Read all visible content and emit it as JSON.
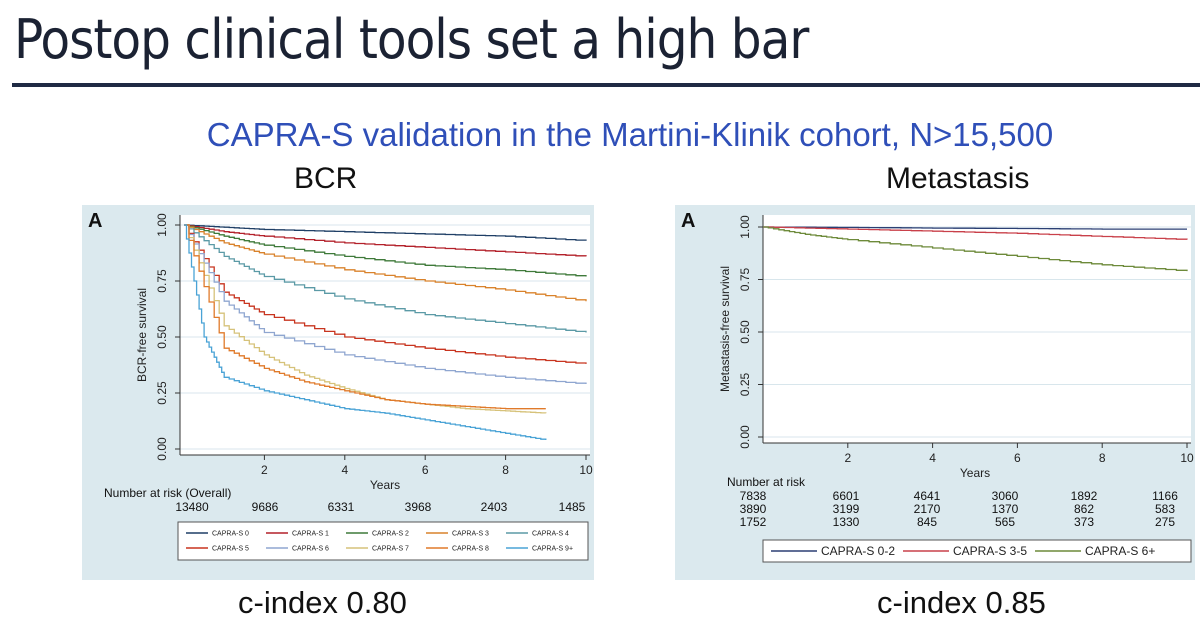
{
  "slide": {
    "title": "Postop clinical tools set a high bar",
    "subtitle": "CAPRA-S validation in the Martini-Klinik cohort, N>15,500",
    "left_heading": "BCR",
    "right_heading": "Metastasis",
    "left_cindex": "c-index 0.80",
    "right_cindex": "c-index 0.85"
  },
  "chart_data": [
    {
      "type": "line",
      "panel_label": "A",
      "ylabel": "BCR-free survival",
      "xlabel": "Years",
      "xlim": [
        0,
        10
      ],
      "ylim": [
        0,
        1
      ],
      "xticks": [
        "2",
        "4",
        "6",
        "8",
        "10"
      ],
      "yticks": [
        "0.00",
        "0.25",
        "0.50",
        "0.75",
        "1.00"
      ],
      "risk_label": "Number at risk (Overall)",
      "risk_table": [
        [
          "13480",
          "9686",
          "6331",
          "3968",
          "2403",
          "1485"
        ]
      ],
      "series": [
        {
          "name": "CAPRA-S 0",
          "color": "#1f3f66",
          "x": [
            0,
            1,
            2,
            4,
            6,
            8,
            10
          ],
          "y": [
            1,
            0.99,
            0.98,
            0.97,
            0.96,
            0.95,
            0.93
          ]
        },
        {
          "name": "CAPRA-S 1",
          "color": "#b3202a",
          "x": [
            0,
            1,
            2,
            4,
            6,
            8,
            10
          ],
          "y": [
            1,
            0.97,
            0.95,
            0.92,
            0.9,
            0.88,
            0.86
          ]
        },
        {
          "name": "CAPRA-S 2",
          "color": "#3f7a3a",
          "x": [
            0,
            1,
            2,
            4,
            6,
            8,
            10
          ],
          "y": [
            1,
            0.95,
            0.91,
            0.86,
            0.82,
            0.8,
            0.77
          ]
        },
        {
          "name": "CAPRA-S 3",
          "color": "#d9822b",
          "x": [
            0,
            1,
            2,
            4,
            6,
            8,
            10
          ],
          "y": [
            1,
            0.92,
            0.87,
            0.8,
            0.75,
            0.71,
            0.66
          ]
        },
        {
          "name": "CAPRA-S 4",
          "color": "#5b9aa6",
          "x": [
            0,
            1,
            2,
            4,
            6,
            8,
            10
          ],
          "y": [
            1,
            0.86,
            0.77,
            0.67,
            0.6,
            0.56,
            0.52
          ]
        },
        {
          "name": "CAPRA-S 5",
          "color": "#c8341f",
          "x": [
            0,
            1,
            2,
            4,
            6,
            8,
            10
          ],
          "y": [
            1,
            0.7,
            0.6,
            0.5,
            0.45,
            0.41,
            0.38
          ]
        },
        {
          "name": "CAPRA-S 6",
          "color": "#8fa6d0",
          "x": [
            0,
            1,
            2,
            4,
            6,
            8,
            10
          ],
          "y": [
            1,
            0.66,
            0.52,
            0.42,
            0.36,
            0.32,
            0.29
          ]
        },
        {
          "name": "CAPRA-S 7",
          "color": "#d6c27a",
          "x": [
            0,
            1,
            2,
            3,
            4,
            5,
            6,
            7,
            8,
            9
          ],
          "y": [
            1,
            0.55,
            0.42,
            0.33,
            0.27,
            0.22,
            0.2,
            0.18,
            0.17,
            0.16
          ]
        },
        {
          "name": "CAPRA-S 8",
          "color": "#e07a2a",
          "x": [
            0,
            1,
            2,
            3,
            4,
            5,
            6,
            7,
            8,
            9
          ],
          "y": [
            1,
            0.45,
            0.36,
            0.3,
            0.26,
            0.22,
            0.2,
            0.19,
            0.18,
            0.18
          ]
        },
        {
          "name": "CAPRA-S 9+",
          "color": "#4aa3d6",
          "x": [
            0,
            0.5,
            1,
            2,
            3,
            4,
            5,
            6,
            7,
            8,
            9
          ],
          "y": [
            1,
            0.5,
            0.32,
            0.26,
            0.22,
            0.18,
            0.16,
            0.13,
            0.1,
            0.07,
            0.04
          ]
        }
      ]
    },
    {
      "type": "line",
      "panel_label": "A",
      "ylabel": "Metastasis-free survival",
      "xlabel": "Years",
      "xlim": [
        0,
        10
      ],
      "ylim": [
        0,
        1
      ],
      "xticks": [
        "2",
        "4",
        "6",
        "8",
        "10"
      ],
      "yticks": [
        "0.00",
        "0.25",
        "0.50",
        "0.75",
        "1.00"
      ],
      "risk_label": "Number at risk",
      "risk_table": [
        [
          "7838",
          "6601",
          "4641",
          "3060",
          "1892",
          "1166"
        ],
        [
          "3890",
          "3199",
          "2170",
          "1370",
          "862",
          "583"
        ],
        [
          "1752",
          "1330",
          "845",
          "565",
          "373",
          "275"
        ]
      ],
      "series": [
        {
          "name": "CAPRA-S 0-2",
          "color": "#2b3f73",
          "x": [
            0,
            2,
            4,
            6,
            8,
            10
          ],
          "y": [
            1,
            0.998,
            0.995,
            0.993,
            0.99,
            0.99
          ]
        },
        {
          "name": "CAPRA-S 3-5",
          "color": "#c9404a",
          "x": [
            0,
            2,
            4,
            6,
            8,
            10
          ],
          "y": [
            1,
            0.99,
            0.98,
            0.97,
            0.955,
            0.94
          ]
        },
        {
          "name": "CAPRA-S 6+",
          "color": "#6d8a3a",
          "x": [
            0,
            1,
            2,
            4,
            6,
            8,
            10
          ],
          "y": [
            1,
            0.965,
            0.94,
            0.9,
            0.86,
            0.82,
            0.79
          ]
        }
      ]
    }
  ]
}
